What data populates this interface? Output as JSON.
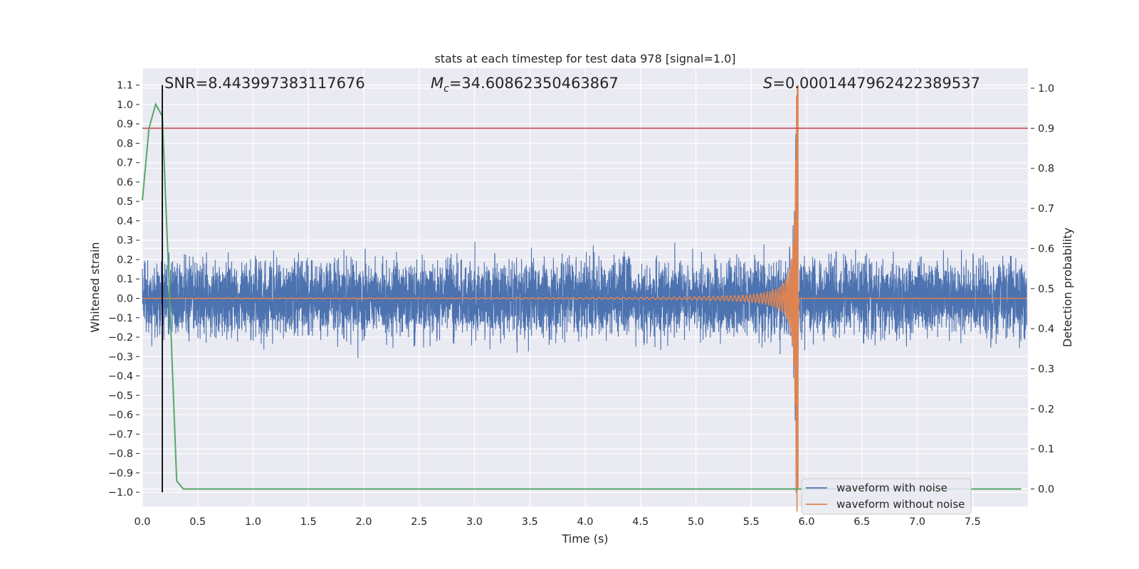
{
  "chart_data": {
    "type": "line",
    "title": "stats at each timestep for test data 978 [signal=1.0]",
    "xlabel": "Time (s)",
    "ylabel": "Whitened strain",
    "y2label": "Detection probability",
    "xlim": [
      0.0,
      8.0
    ],
    "ylim": [
      -1.1,
      1.2
    ],
    "y2lim": [
      -0.05,
      1.02
    ],
    "x_ticks": [
      "0.0",
      "0.5",
      "1.0",
      "1.5",
      "2.0",
      "2.5",
      "3.0",
      "3.5",
      "4.0",
      "4.5",
      "5.0",
      "5.5",
      "6.0",
      "6.5",
      "7.0",
      "7.5"
    ],
    "y_ticks": [
      "1.1",
      "1.0",
      "0.9",
      "0.8",
      "0.7",
      "0.6",
      "0.5",
      "0.4",
      "0.3",
      "0.2",
      "0.1",
      "0.0",
      "−0.1",
      "−0.2",
      "−0.3",
      "−0.4",
      "−0.5",
      "−0.6",
      "−0.7",
      "−0.8",
      "−0.9",
      "−1.0"
    ],
    "y2_ticks": [
      "1.0",
      "0.9",
      "0.8",
      "0.7",
      "0.6",
      "0.5",
      "0.4",
      "0.3",
      "0.2",
      "0.1",
      "0.0"
    ],
    "grid": true,
    "legend_position": "lower-right",
    "annotations": {
      "snr": "SNR=8.443997383117676",
      "mc_symbol": "M",
      "mc_sub": "c",
      "mc_value": "=34.60862350463867",
      "s_symbol": "S",
      "s_value": "=0.0001447962422389537"
    },
    "series": [
      {
        "name": "waveform with noise",
        "color": "#4c72b0",
        "description_range": "noise band about ±0.25 from 0.0 to 8.0 s, chirp growing to about 1.05 / -0.95 near 5.9 s",
        "noise_amplitude": 0.25,
        "merger_time": 5.92,
        "peak": 1.05
      },
      {
        "name": "waveform without noise",
        "color": "#dd8452",
        "merger_time": 5.92,
        "peak": 1.1,
        "start_time": 0.0
      },
      {
        "color": "#55a868",
        "axis": "right",
        "x": [
          0.0,
          0.06,
          0.12,
          0.18,
          0.25,
          0.31,
          0.37,
          0.5,
          1.0,
          2.0,
          3.0,
          4.0,
          5.0,
          6.0,
          7.0,
          7.94
        ],
        "y": [
          0.72,
          0.9,
          0.96,
          0.93,
          0.45,
          0.02,
          0.0,
          0.0,
          0.0,
          0.0,
          0.0,
          0.0,
          0.0,
          0.0,
          0.0,
          0.0
        ]
      }
    ],
    "threshold_line": {
      "axis": "right",
      "value": 0.9,
      "color": "#c44e52"
    },
    "marker_line": {
      "x": 0.18,
      "y_from": -1.0,
      "y_to": 1.1,
      "color": "#000000"
    },
    "colors": {
      "plot_bg": "#eaeaf2",
      "grid": "#ffffff"
    }
  }
}
